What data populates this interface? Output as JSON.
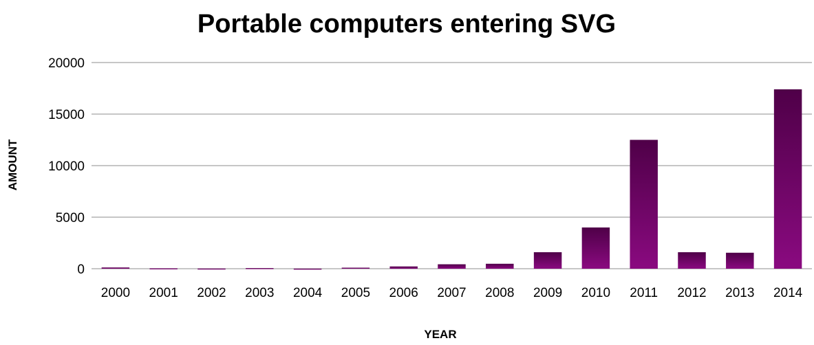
{
  "chart_data": {
    "type": "bar",
    "title": "Portable computers entering SVG",
    "xlabel": "YEAR",
    "ylabel": "AMOUNT",
    "categories": [
      "2000",
      "2001",
      "2002",
      "2003",
      "2004",
      "2005",
      "2006",
      "2007",
      "2008",
      "2009",
      "2010",
      "2011",
      "2012",
      "2013",
      "2014"
    ],
    "values": [
      120,
      40,
      20,
      60,
      10,
      100,
      220,
      430,
      480,
      1600,
      4000,
      12500,
      1600,
      1550,
      17400
    ],
    "ylim": [
      0,
      20000
    ],
    "yticks": [
      "0",
      "5000",
      "10000",
      "15000",
      "20000"
    ],
    "yticks_values": [
      0,
      5000,
      10000,
      15000,
      20000
    ],
    "grid": true,
    "legend": "none",
    "colors": {
      "bar_top": "#4f0048",
      "bar_bottom": "#8a0a80",
      "grid": "#8c8c8c"
    }
  }
}
